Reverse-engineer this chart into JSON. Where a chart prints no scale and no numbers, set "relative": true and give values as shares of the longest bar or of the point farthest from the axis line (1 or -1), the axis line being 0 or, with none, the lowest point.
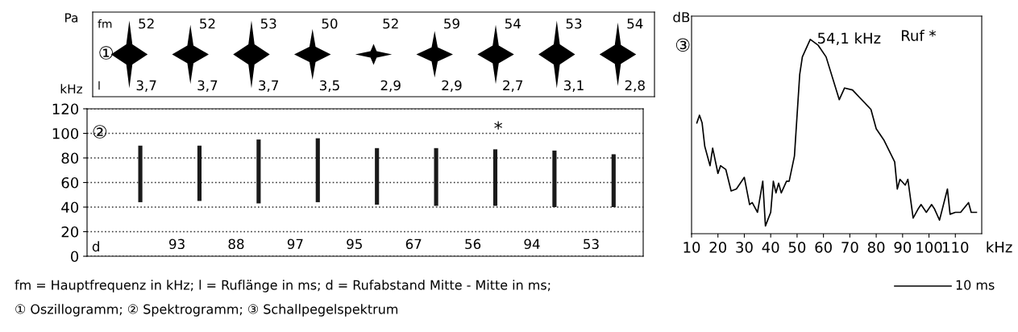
{
  "chart_data": [
    {
      "type": "other",
      "annotations": [
        "Pa",
        "kHz",
        "①",
        "fm",
        "l",
        "52",
        "52",
        "53",
        "50",
        "52",
        "59",
        "54",
        "53",
        "54",
        "3,7",
        "3,7",
        "3,7",
        "3,5",
        "2,9",
        "2,9",
        "2,7",
        "3,1",
        "2,8"
      ]
    },
    {
      "type": "bar",
      "categories": [
        null,
        null,
        null,
        null,
        null,
        null,
        null,
        null,
        null
      ],
      "base": [
        44,
        45,
        43,
        44,
        42,
        41,
        41,
        40,
        40
      ],
      "values": [
        46,
        45,
        52,
        52,
        46,
        47,
        46,
        46,
        43
      ],
      "color": "#1a1a1a",
      "ylim": [
        0,
        120
      ],
      "yticks": [
        0,
        20,
        40,
        60,
        80,
        100,
        120
      ],
      "grid": "y",
      "tick_labels": "y",
      "annotations": [
        "②",
        "*",
        "d",
        "93",
        "88",
        "97",
        "95",
        "67",
        "56",
        "94",
        "53",
        "fm = Hauptfrequenz in kHz; l = Ruflänge in ms; d = Rufabstand Mitte - Mitte in ms;",
        "① Oszillogramm; ② Spektrogramm; ③ Schallpegelspektrum",
        "10 ms"
      ]
    },
    {
      "type": "line",
      "relative": true,
      "color": "#000000",
      "xlabel": "kHz",
      "ylabel": "dB",
      "x": [
        12,
        13,
        14,
        15,
        17,
        18,
        20,
        21,
        23,
        25,
        27,
        30,
        32,
        33,
        35,
        37,
        38,
        40,
        41,
        42,
        43,
        44,
        46,
        47,
        49,
        51,
        52,
        55,
        58,
        61,
        66,
        68,
        71,
        78,
        80,
        83,
        87,
        88,
        89,
        91,
        92,
        94,
        96,
        97,
        99,
        101,
        102,
        104,
        107,
        108,
        110,
        112,
        115,
        116,
        118
      ],
      "values": [
        0.57,
        0.61,
        0.57,
        0.45,
        0.35,
        0.44,
        0.31,
        0.35,
        0.33,
        0.22,
        0.23,
        0.29,
        0.15,
        0.16,
        0.11,
        0.27,
        0.04,
        0.11,
        0.27,
        0.21,
        0.26,
        0.21,
        0.27,
        0.27,
        0.4,
        0.82,
        0.91,
        1.0,
        0.97,
        0.91,
        0.69,
        0.75,
        0.74,
        0.64,
        0.54,
        0.48,
        0.37,
        0.23,
        0.28,
        0.25,
        0.28,
        0.08,
        0.13,
        0.15,
        0.11,
        0.15,
        0.13,
        0.07,
        0.23,
        0.1,
        0.11,
        0.11,
        0.16,
        0.11,
        0.11
      ],
      "xlim": [
        10,
        120
      ],
      "xticks": [
        10,
        20,
        30,
        40,
        50,
        60,
        70,
        80,
        90,
        100,
        110
      ],
      "annotations": [
        "③",
        {
          "text": "54,1 kHz",
          "x": 55,
          "y": 1.0
        },
        "Ruf *"
      ]
    }
  ]
}
